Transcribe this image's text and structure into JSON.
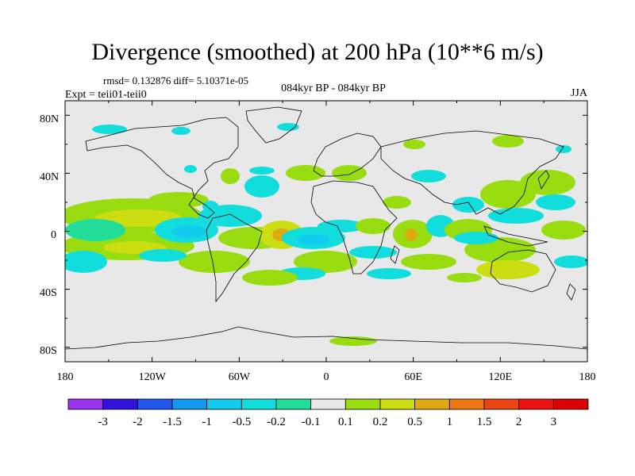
{
  "title": "Divergence (smoothed) at 200 hPa (10**6 m/s)",
  "stats": "rmsd= 0.132876 diff= 5.10371e-05",
  "experiment": "Expt = teii01-teii0",
  "comparison": "084kyr BP - 084kyr BP",
  "season": "JJA",
  "lat_ticks": [
    "80N",
    "40N",
    "0",
    "40S",
    "80S"
  ],
  "lon_ticks": [
    "180",
    "120W",
    "60W",
    "0",
    "60E",
    "120E",
    "180"
  ],
  "colorbar": {
    "labels": [
      "-3",
      "-2",
      "-1.5",
      "-1",
      "-0.5",
      "-0.2",
      "-0.1",
      "0.1",
      "0.2",
      "0.5",
      "1",
      "1.5",
      "2",
      "3"
    ],
    "colors": [
      "#9933ee",
      "#3311dd",
      "#2255ee",
      "#1199ee",
      "#11ccee",
      "#11dddd",
      "#22dd99",
      "#e8e8e8",
      "#99dd11",
      "#ccdd11",
      "#ddaa11",
      "#ee7711",
      "#ee4411",
      "#ee1111",
      "#dd0000"
    ]
  },
  "map": {
    "background": "#e8e8e8",
    "coast_color": "#000000"
  }
}
